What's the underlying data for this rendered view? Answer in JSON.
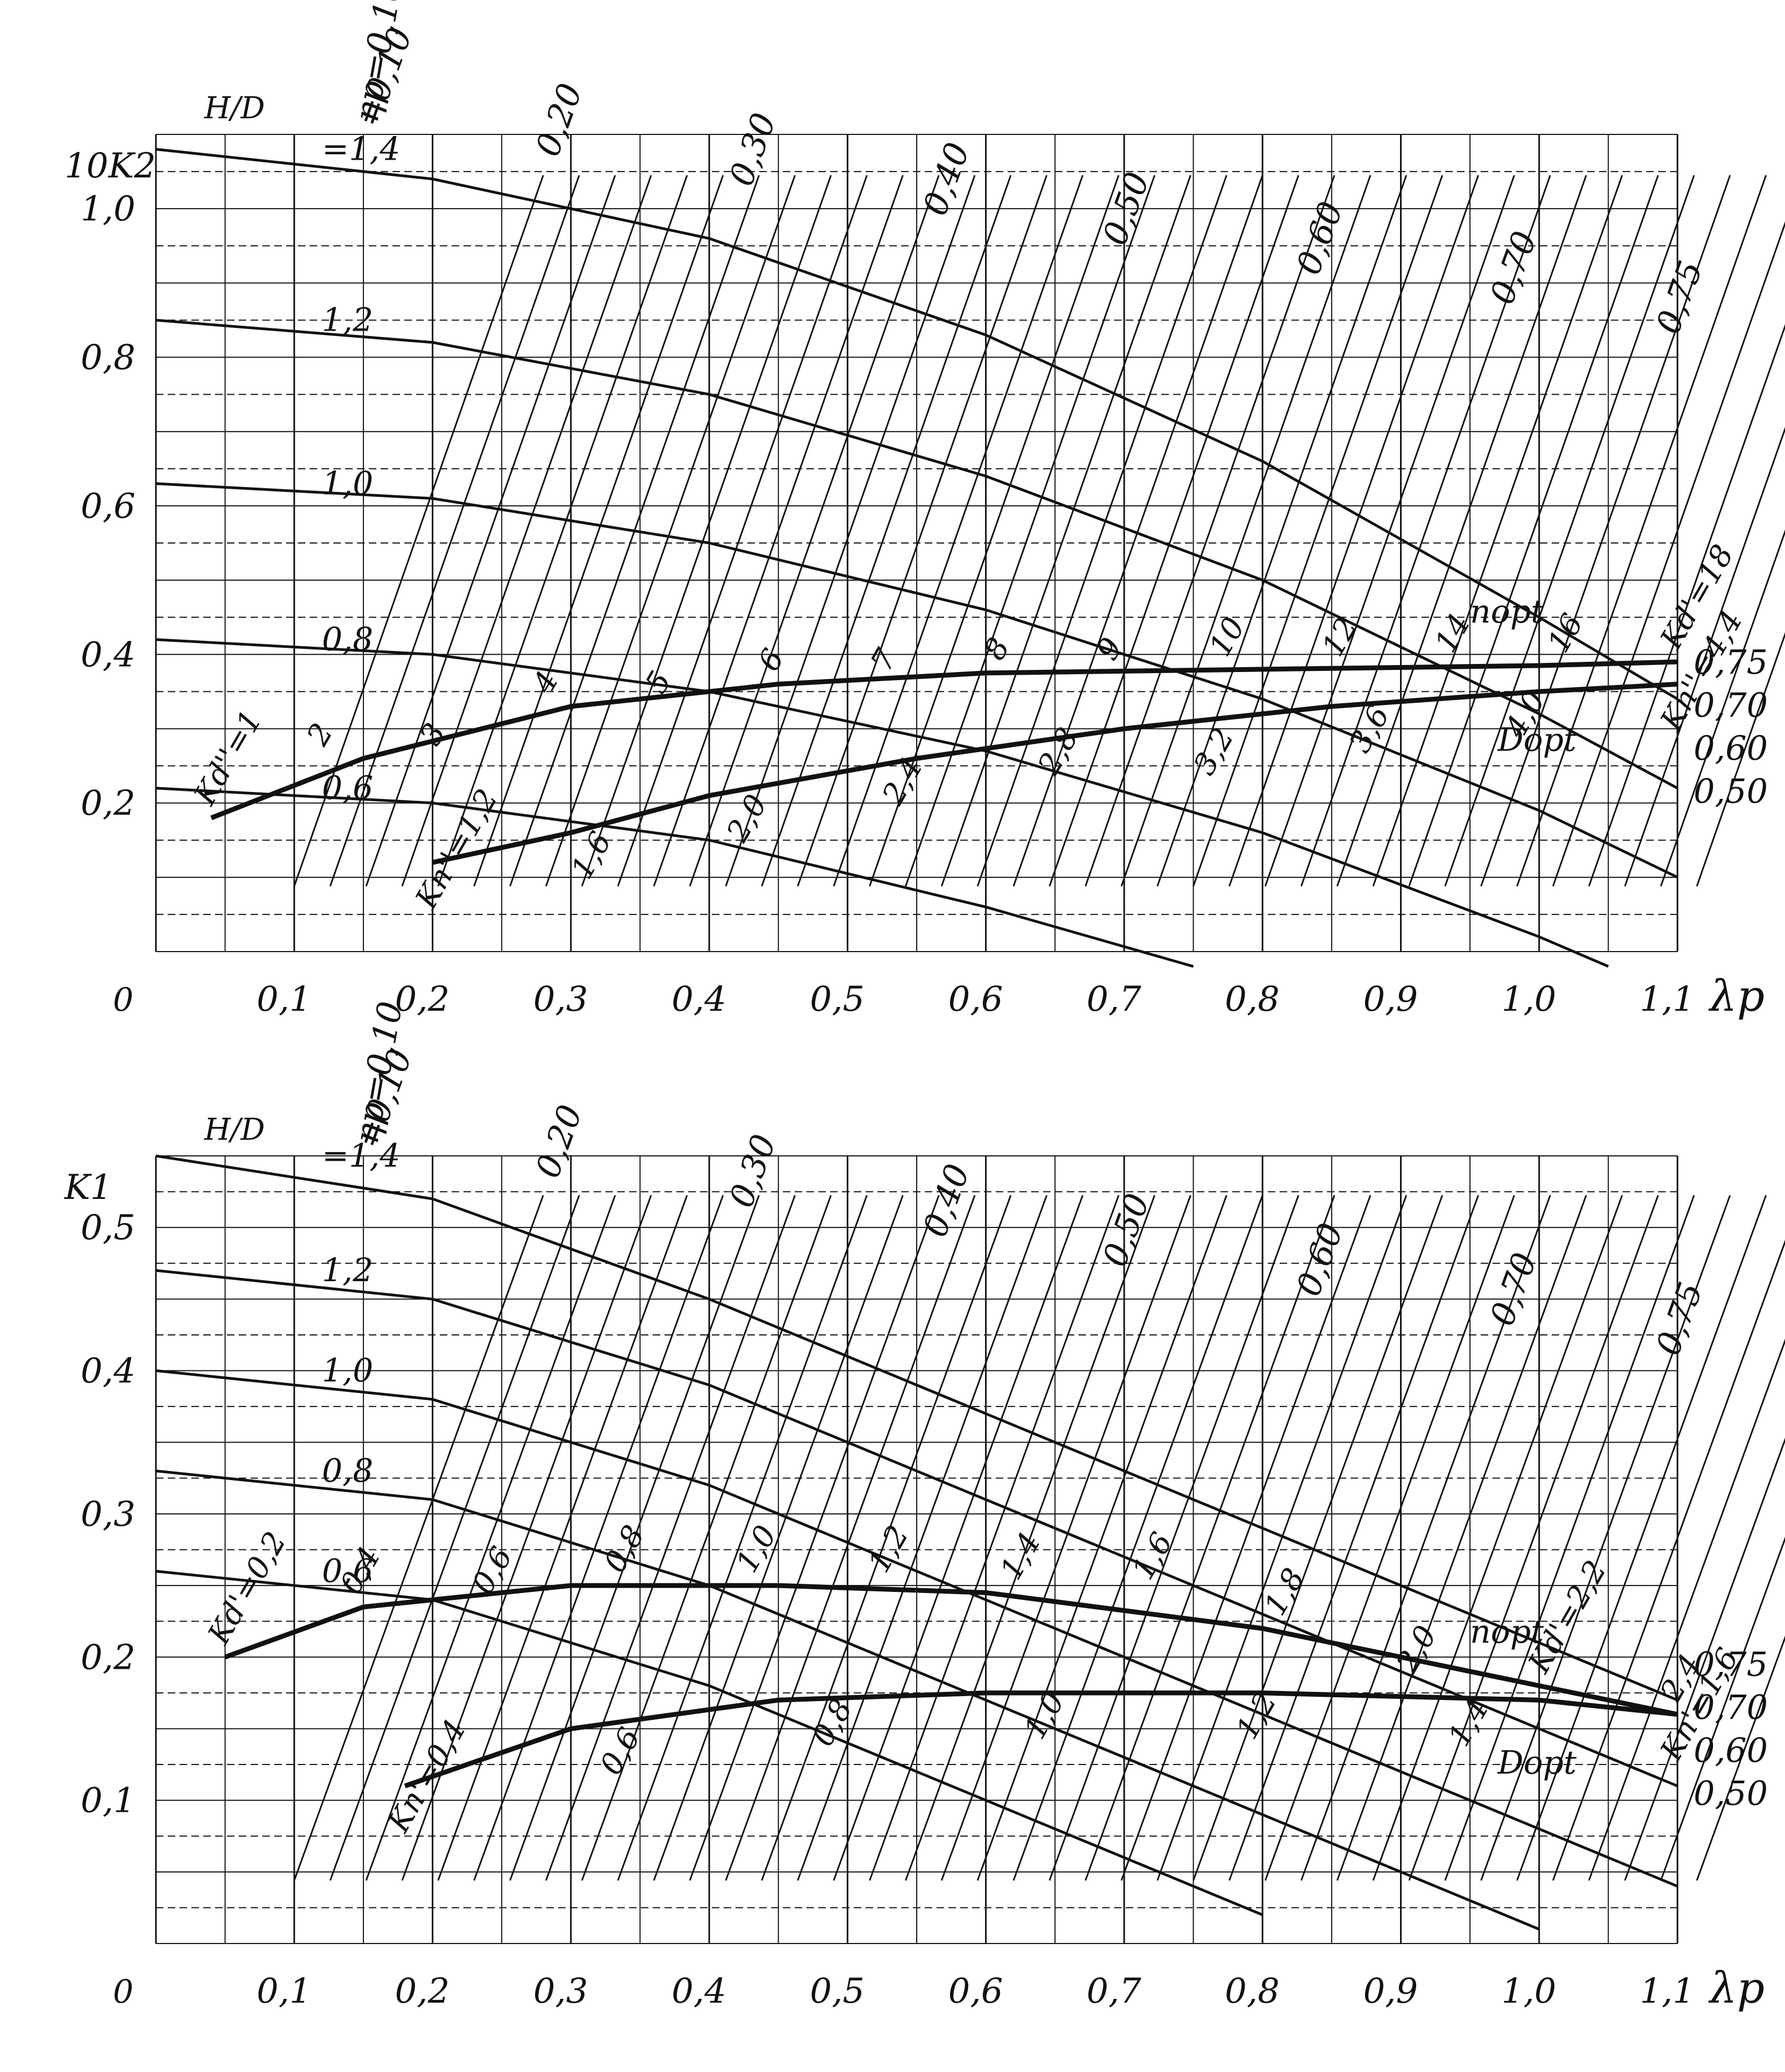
{
  "colors": {
    "ink": "#111111",
    "paper": "#ffffff"
  },
  "chart_data": [
    {
      "type": "line",
      "id": "top",
      "ylabel": "10K2",
      "xlabel": "λp",
      "origin_label": "0",
      "xlim": [
        0,
        1.1
      ],
      "ylim": [
        0,
        1.1
      ],
      "x_ticks": [
        "0,1",
        "0,2",
        "0,3",
        "0,4",
        "0,5",
        "0,6",
        "0,7",
        "0,8",
        "0,9",
        "1,0",
        "1,1"
      ],
      "y_ticks": [
        "0,2",
        "0,4",
        "0,6",
        "0,8",
        "1,0"
      ],
      "grid": true,
      "hd_title": "H/D",
      "hd_curves": [
        {
          "label": "=1,4",
          "points": [
            [
              0.0,
              1.08
            ],
            [
              0.2,
              1.04
            ],
            [
              0.4,
              0.96
            ],
            [
              0.6,
              0.83
            ],
            [
              0.8,
              0.66
            ],
            [
              1.0,
              0.45
            ],
            [
              1.1,
              0.34
            ]
          ]
        },
        {
          "label": "1,2",
          "points": [
            [
              0.0,
              0.85
            ],
            [
              0.2,
              0.82
            ],
            [
              0.4,
              0.75
            ],
            [
              0.6,
              0.64
            ],
            [
              0.8,
              0.5
            ],
            [
              1.0,
              0.32
            ],
            [
              1.1,
              0.22
            ]
          ]
        },
        {
          "label": "1,0",
          "points": [
            [
              0.0,
              0.63
            ],
            [
              0.2,
              0.61
            ],
            [
              0.4,
              0.55
            ],
            [
              0.6,
              0.46
            ],
            [
              0.8,
              0.34
            ],
            [
              1.0,
              0.19
            ],
            [
              1.1,
              0.1
            ]
          ]
        },
        {
          "label": "0,8",
          "points": [
            [
              0.0,
              0.42
            ],
            [
              0.2,
              0.4
            ],
            [
              0.4,
              0.35
            ],
            [
              0.6,
              0.27
            ],
            [
              0.8,
              0.16
            ],
            [
              1.0,
              0.02
            ],
            [
              1.05,
              -0.02
            ]
          ]
        },
        {
          "label": "0,6",
          "points": [
            [
              0.0,
              0.22
            ],
            [
              0.2,
              0.2
            ],
            [
              0.4,
              0.15
            ],
            [
              0.6,
              0.06
            ],
            [
              0.75,
              -0.02
            ]
          ]
        }
      ],
      "eta_label": "ηp=0,10",
      "eta_lines": [
        "=0,10",
        "0,20",
        "0,30",
        "0,40",
        "0,50",
        "0,60",
        "0,70",
        "0,75"
      ],
      "kd_curve": {
        "points": [
          [
            0.04,
            0.18
          ],
          [
            0.15,
            0.26
          ],
          [
            0.3,
            0.33
          ],
          [
            0.45,
            0.36
          ],
          [
            0.6,
            0.375
          ],
          [
            0.8,
            0.38
          ],
          [
            1.0,
            0.385
          ],
          [
            1.1,
            0.39
          ]
        ],
        "labels": [
          "Kd''=1",
          "2",
          "3",
          "4",
          "5",
          "6",
          "7",
          "8",
          "9",
          "10",
          "12",
          "14",
          "16",
          "Kd'=18"
        ]
      },
      "kn_curve": {
        "points": [
          [
            0.2,
            0.12
          ],
          [
            0.3,
            0.16
          ],
          [
            0.4,
            0.21
          ],
          [
            0.55,
            0.26
          ],
          [
            0.7,
            0.3
          ],
          [
            0.85,
            0.33
          ],
          [
            1.0,
            0.35
          ],
          [
            1.1,
            0.36
          ]
        ],
        "labels": [
          "Kn''=1,2",
          "1,6",
          "2,0",
          "2,4",
          "2,8",
          "3,2",
          "3,6",
          "4,0",
          "Kn''=4,4"
        ]
      },
      "n_opt": "nopt",
      "d_opt": "Dopt",
      "right_eff_labels": [
        "0,75",
        "0,70",
        "0,60",
        "0,50"
      ]
    },
    {
      "type": "line",
      "id": "bottom",
      "ylabel": "K1",
      "xlabel": "λp",
      "origin_label": "0",
      "xlim": [
        0,
        1.1
      ],
      "ylim": [
        0,
        0.55
      ],
      "x_ticks": [
        "0,1",
        "0,2",
        "0,3",
        "0,4",
        "0,5",
        "0,6",
        "0,7",
        "0,8",
        "0,9",
        "1,0",
        "1,1"
      ],
      "y_ticks": [
        "0,1",
        "0,2",
        "0,3",
        "0,4",
        "0,5"
      ],
      "grid": true,
      "hd_title": "H/D",
      "hd_curves": [
        {
          "label": "=1,4",
          "points": [
            [
              0.0,
              0.55
            ],
            [
              0.2,
              0.52
            ],
            [
              0.4,
              0.45
            ],
            [
              0.6,
              0.37
            ],
            [
              0.8,
              0.29
            ],
            [
              1.0,
              0.21
            ],
            [
              1.1,
              0.17
            ]
          ]
        },
        {
          "label": "1,2",
          "points": [
            [
              0.0,
              0.47
            ],
            [
              0.2,
              0.45
            ],
            [
              0.4,
              0.39
            ],
            [
              0.6,
              0.31
            ],
            [
              0.8,
              0.23
            ],
            [
              1.0,
              0.15
            ],
            [
              1.1,
              0.11
            ]
          ]
        },
        {
          "label": "1,0",
          "points": [
            [
              0.0,
              0.4
            ],
            [
              0.2,
              0.38
            ],
            [
              0.4,
              0.32
            ],
            [
              0.6,
              0.24
            ],
            [
              0.8,
              0.16
            ],
            [
              1.0,
              0.08
            ],
            [
              1.1,
              0.04
            ]
          ]
        },
        {
          "label": "0,8",
          "points": [
            [
              0.0,
              0.33
            ],
            [
              0.2,
              0.31
            ],
            [
              0.4,
              0.25
            ],
            [
              0.6,
              0.17
            ],
            [
              0.8,
              0.09
            ],
            [
              1.0,
              0.01
            ]
          ]
        },
        {
          "label": "0,6",
          "points": [
            [
              0.0,
              0.26
            ],
            [
              0.2,
              0.24
            ],
            [
              0.4,
              0.18
            ],
            [
              0.6,
              0.1
            ],
            [
              0.8,
              0.02
            ]
          ]
        }
      ],
      "eta_label": "ηp=0,10",
      "eta_lines": [
        "=0,10",
        "0,20",
        "0,30",
        "0,40",
        "0,50",
        "0,60",
        "0,70",
        "0,75"
      ],
      "kd_curve": {
        "points": [
          [
            0.05,
            0.2
          ],
          [
            0.15,
            0.235
          ],
          [
            0.3,
            0.25
          ],
          [
            0.45,
            0.25
          ],
          [
            0.6,
            0.245
          ],
          [
            0.8,
            0.22
          ],
          [
            1.0,
            0.18
          ],
          [
            1.1,
            0.16
          ]
        ],
        "labels": [
          "Kd'=0,2",
          "0,4",
          "0,6",
          "0,8",
          "1,0",
          "1,2",
          "1,4",
          "1,6",
          "1,8",
          "2,0",
          "Kd'=2,2",
          "2,4"
        ]
      },
      "kn_curve": {
        "points": [
          [
            0.18,
            0.11
          ],
          [
            0.3,
            0.15
          ],
          [
            0.45,
            0.17
          ],
          [
            0.6,
            0.175
          ],
          [
            0.8,
            0.175
          ],
          [
            1.0,
            0.17
          ],
          [
            1.1,
            0.16
          ]
        ],
        "labels": [
          "Kn'=0,4",
          "0,6",
          "0,8",
          "1,0",
          "1,2",
          "1,4",
          "Kn'=1,6"
        ]
      },
      "n_opt": "nopt",
      "d_opt": "Dopt",
      "right_eff_labels": [
        "0,75",
        "0,70",
        "0,60",
        "0,50"
      ]
    }
  ]
}
